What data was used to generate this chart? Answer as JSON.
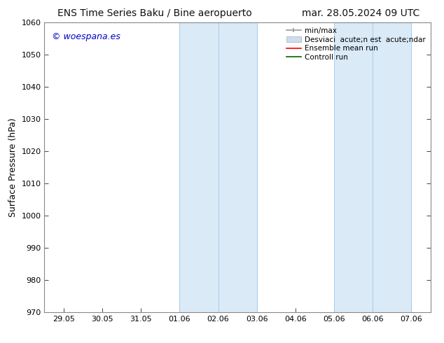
{
  "title_left": "ENS Time Series Baku / Bine aeropuerto",
  "title_right": "mar. 28.05.2024 09 UTC",
  "ylabel": "Surface Pressure (hPa)",
  "ylim": [
    970,
    1060
  ],
  "yticks": [
    970,
    980,
    990,
    1000,
    1010,
    1020,
    1030,
    1040,
    1050,
    1060
  ],
  "xtick_labels": [
    "29.05",
    "30.05",
    "31.05",
    "01.06",
    "02.06",
    "03.06",
    "04.06",
    "05.06",
    "06.06",
    "07.06"
  ],
  "xtick_positions": [
    0,
    1,
    2,
    3,
    4,
    5,
    6,
    7,
    8,
    9
  ],
  "xlim": [
    -0.5,
    9.5
  ],
  "shaded_regions": [
    {
      "x_start": 3.0,
      "x_end": 4.0,
      "color": "#daeaf7"
    },
    {
      "x_start": 4.0,
      "x_end": 5.0,
      "color": "#daeaf7"
    },
    {
      "x_start": 7.0,
      "x_end": 8.0,
      "color": "#daeaf7"
    },
    {
      "x_start": 8.0,
      "x_end": 9.0,
      "color": "#daeaf7"
    }
  ],
  "vlines": [
    {
      "x": 3.0,
      "color": "#aacce8",
      "lw": 0.7
    },
    {
      "x": 4.0,
      "color": "#aacce8",
      "lw": 0.7
    },
    {
      "x": 5.0,
      "color": "#aacce8",
      "lw": 0.7
    },
    {
      "x": 7.0,
      "color": "#aacce8",
      "lw": 0.7
    },
    {
      "x": 8.0,
      "color": "#aacce8",
      "lw": 0.7
    },
    {
      "x": 9.0,
      "color": "#aacce8",
      "lw": 0.7
    }
  ],
  "watermark_text": "© woespana.es",
  "watermark_color": "#0000cc",
  "legend_label1": "min/max",
  "legend_label2": "Desviaci  acute;n est  acute;ndar",
  "legend_label3": "Ensemble mean run",
  "legend_label4": "Controll run",
  "legend_color1": "#999999",
  "legend_color2": "#ccddf0",
  "legend_color3": "#ff0000",
  "legend_color4": "#006400",
  "bg_color": "#ffffff",
  "spine_color": "#888888",
  "title_fontsize": 10,
  "axis_label_fontsize": 9,
  "tick_fontsize": 8,
  "watermark_fontsize": 9,
  "legend_fontsize": 7.5
}
